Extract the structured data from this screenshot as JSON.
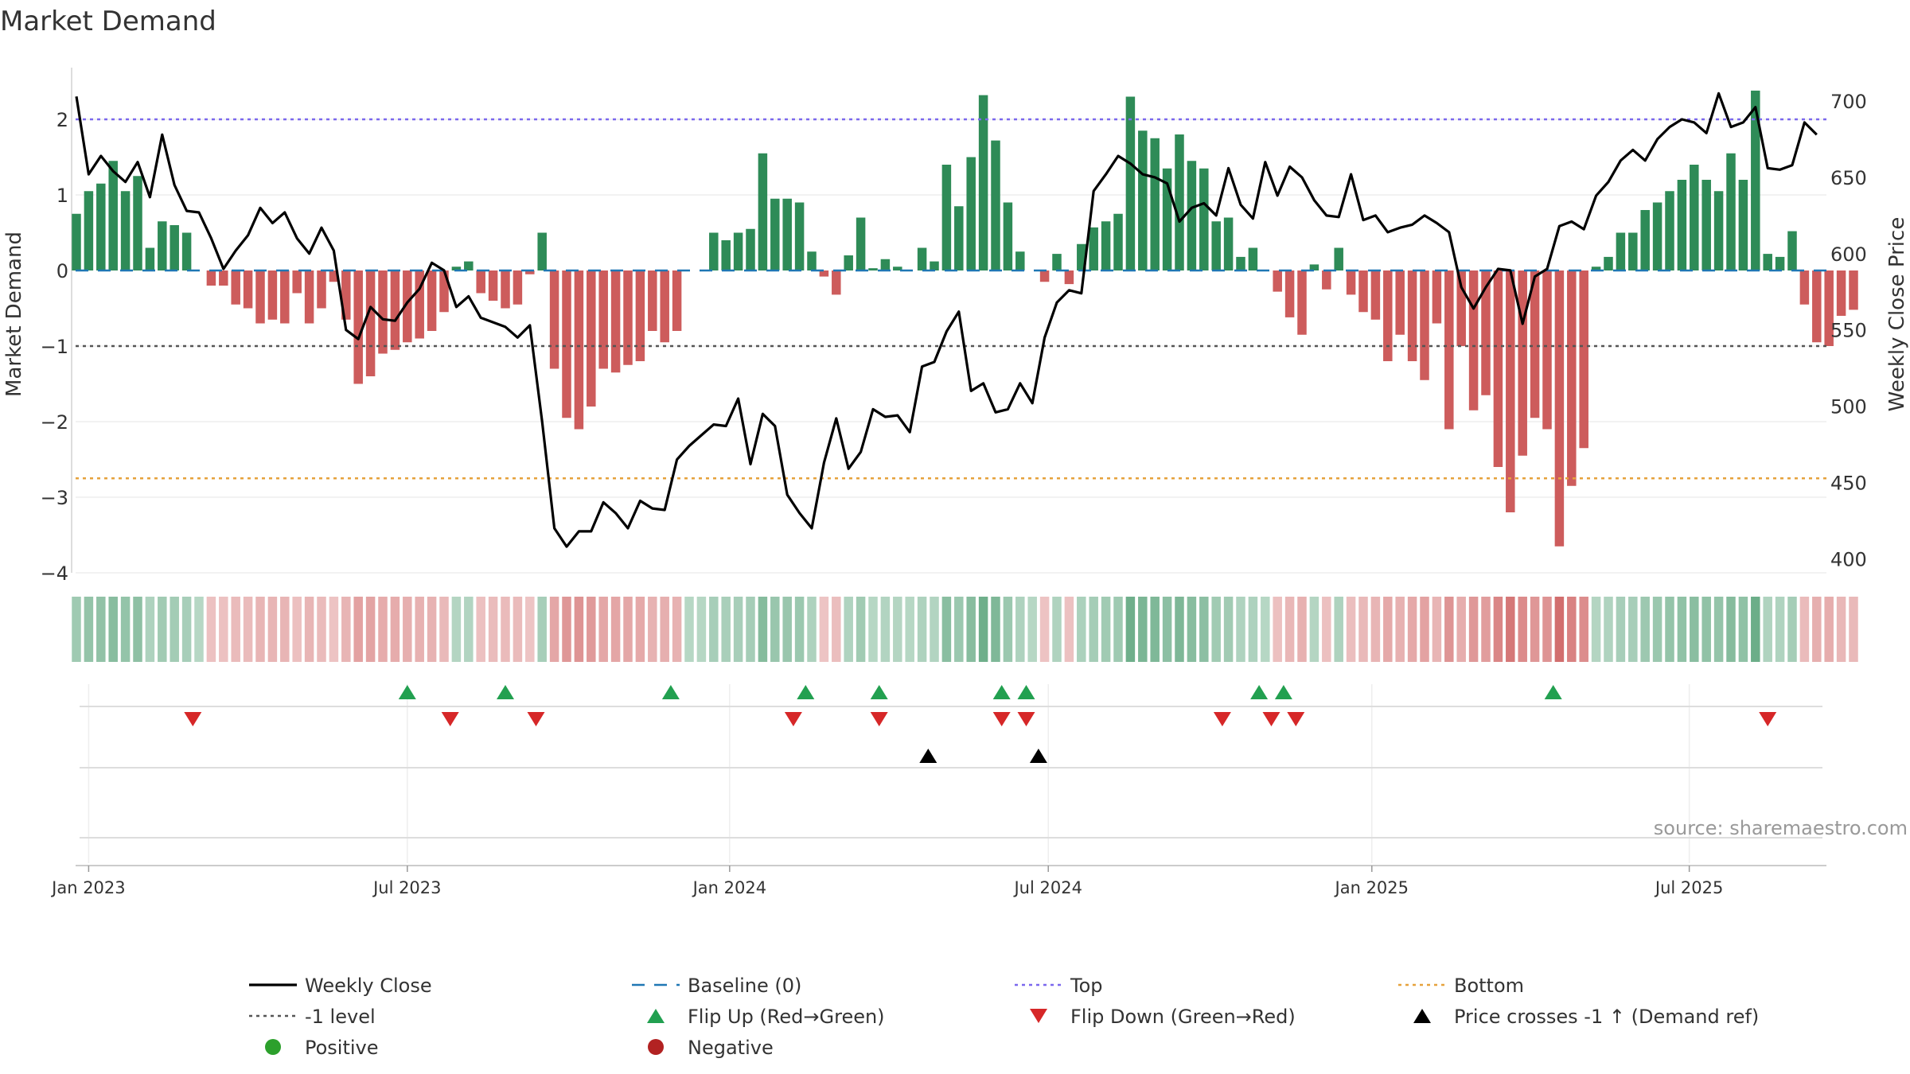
{
  "chart_data": {
    "type": "bar+line",
    "title": "Market Demand",
    "ylabel_left": "Market Demand",
    "ylabel_right": "Weekly Close Price",
    "ylim_left": [
      -4,
      2.5
    ],
    "yticks_left": [
      2,
      1,
      0,
      -1,
      -2,
      -3,
      -4
    ],
    "ytick_labels_left": [
      "2",
      "1",
      "0",
      "−1",
      "−2",
      "−3",
      "−4"
    ],
    "ylim_right": [
      395,
      710
    ],
    "yticks_right": [
      700,
      650,
      600,
      550,
      500,
      450,
      400
    ],
    "reference_lines": {
      "top": 2,
      "baseline": 0,
      "minus_one": -1,
      "bottom": -2.75
    },
    "x_ticks": [
      {
        "label": "Jan 2023",
        "week": 1
      },
      {
        "label": "Jul 2023",
        "week": 27
      },
      {
        "label": "Jan 2024",
        "week": 53.3
      },
      {
        "label": "Jul 2024",
        "week": 79.3
      },
      {
        "label": "Jan 2025",
        "week": 105.7
      },
      {
        "label": "Jul 2025",
        "week": 131.6
      }
    ],
    "weeks": 144,
    "demand": [
      0.75,
      1.05,
      1.15,
      1.45,
      1.05,
      1.25,
      0.3,
      0.65,
      0.6,
      0.5,
      0,
      -0.2,
      -0.2,
      -0.45,
      -0.5,
      -0.7,
      -0.65,
      -0.7,
      -0.3,
      -0.7,
      -0.5,
      -0.15,
      -0.65,
      -1.5,
      -1.4,
      -1.1,
      -1.05,
      -0.95,
      -0.9,
      -0.8,
      -0.55,
      0.05,
      0.12,
      -0.3,
      -0.4,
      -0.5,
      -0.45,
      -0.05,
      0.5,
      -1.3,
      -1.95,
      -2.1,
      -1.8,
      -1.3,
      -1.35,
      -1.25,
      -1.2,
      -0.8,
      -0.95,
      -0.8,
      0,
      0,
      0.5,
      0.4,
      0.5,
      0.55,
      1.55,
      0.95,
      0.95,
      0.9,
      0.25,
      -0.08,
      -0.32,
      0.2,
      0.7,
      0.03,
      0.15,
      0.05,
      0,
      0.3,
      0.12,
      1.4,
      0.85,
      1.5,
      2.32,
      1.72,
      0.9,
      0.25,
      0,
      -0.15,
      0.22,
      -0.18,
      0.35,
      0.57,
      0.65,
      0.75,
      2.3,
      1.85,
      1.75,
      1.35,
      1.8,
      1.45,
      1.35,
      0.65,
      0.7,
      0.18,
      0.3,
      0,
      -0.28,
      -0.62,
      -0.85,
      0.08,
      -0.25,
      0.3,
      -0.32,
      -0.55,
      -0.65,
      -1.2,
      -0.85,
      -1.2,
      -1.45,
      -0.7,
      -2.1,
      -1,
      -1.85,
      -1.65,
      -2.6,
      -3.2,
      -2.45,
      -1.95,
      -2.1,
      -3.65,
      -2.85,
      -2.35,
      0.05,
      0.18,
      0.5,
      0.5,
      0.8,
      0.9,
      1.05,
      1.2,
      1.4,
      1.2,
      1.05,
      1.55,
      1.2,
      2.38,
      0.22,
      0.18,
      0.52,
      -0.45,
      -0.95,
      -1,
      -0.6,
      -0.52
    ],
    "weekly_close": [
      703,
      652,
      664,
      654,
      647,
      660,
      637,
      678,
      645,
      628,
      627,
      610,
      590,
      602,
      612,
      630,
      620,
      627,
      610,
      600,
      617,
      602,
      550,
      544,
      565,
      557,
      556,
      568,
      577,
      594,
      589,
      565,
      572,
      558,
      555,
      552,
      545,
      553,
      490,
      420,
      408,
      418,
      418,
      437,
      430,
      420,
      438,
      433,
      432,
      465,
      474,
      481,
      488,
      487,
      505,
      462,
      495,
      487,
      442,
      430,
      420,
      463,
      492,
      459,
      470,
      498,
      493,
      494,
      483,
      526,
      529,
      549,
      562,
      510,
      515,
      496,
      498,
      515,
      502,
      545,
      568,
      576,
      574,
      641,
      652,
      664,
      659,
      652,
      650,
      646,
      621,
      630,
      633,
      625,
      656,
      632,
      623,
      660,
      638,
      657,
      650,
      635,
      625,
      624,
      652,
      622,
      625,
      614,
      617,
      619,
      625,
      620,
      614,
      578,
      564,
      578,
      590,
      589,
      554,
      585,
      590,
      618,
      621,
      616,
      638,
      647,
      661,
      668,
      661,
      675,
      683,
      688,
      686,
      679,
      705,
      683,
      686,
      696,
      656,
      655,
      658,
      686,
      678
    ],
    "heatmap_strip": "weekly Market Demand value shaded green (positive) / red (negative)",
    "flip_up_weeks": [
      27,
      35,
      48.5,
      59.5,
      65.5,
      75.5,
      77.5,
      96.5,
      98.5,
      120.5
    ],
    "flip_down_weeks": [
      9.5,
      30.5,
      37.5,
      58.5,
      65.5,
      75.5,
      77.5,
      93.5,
      97.5,
      99.5,
      138
    ],
    "price_cross_weeks": [
      69.5,
      78.5
    ],
    "source": "source: sharemaestro.com",
    "legend": [
      {
        "label": "Weekly Close",
        "symbol": "line",
        "color": "#000000"
      },
      {
        "label": "Baseline (0)",
        "symbol": "dash",
        "color": "#1f77b4"
      },
      {
        "label": "Top",
        "symbol": "dot",
        "color": "#7b68ee"
      },
      {
        "label": "Bottom",
        "symbol": "dot",
        "color": "#e6a23c"
      },
      {
        "label": "-1 level",
        "symbol": "dot",
        "color": "#555555"
      },
      {
        "label": "Flip Up (Red→Green)",
        "symbol": "tri-up",
        "color": "#22a050"
      },
      {
        "label": "Flip Down (Green→Red)",
        "symbol": "tri-down",
        "color": "#d62728"
      },
      {
        "label": "Price crosses -1 ↑ (Demand ref)",
        "symbol": "tri-up",
        "color": "#000000"
      },
      {
        "label": "Positive",
        "symbol": "circle",
        "color": "#2ca02c"
      },
      {
        "label": "Negative",
        "symbol": "circle",
        "color": "#b22222"
      }
    ],
    "colors": {
      "positive_bar": "#2e8b57",
      "negative_bar": "#cd5c5c",
      "price_line": "#000000"
    }
  }
}
